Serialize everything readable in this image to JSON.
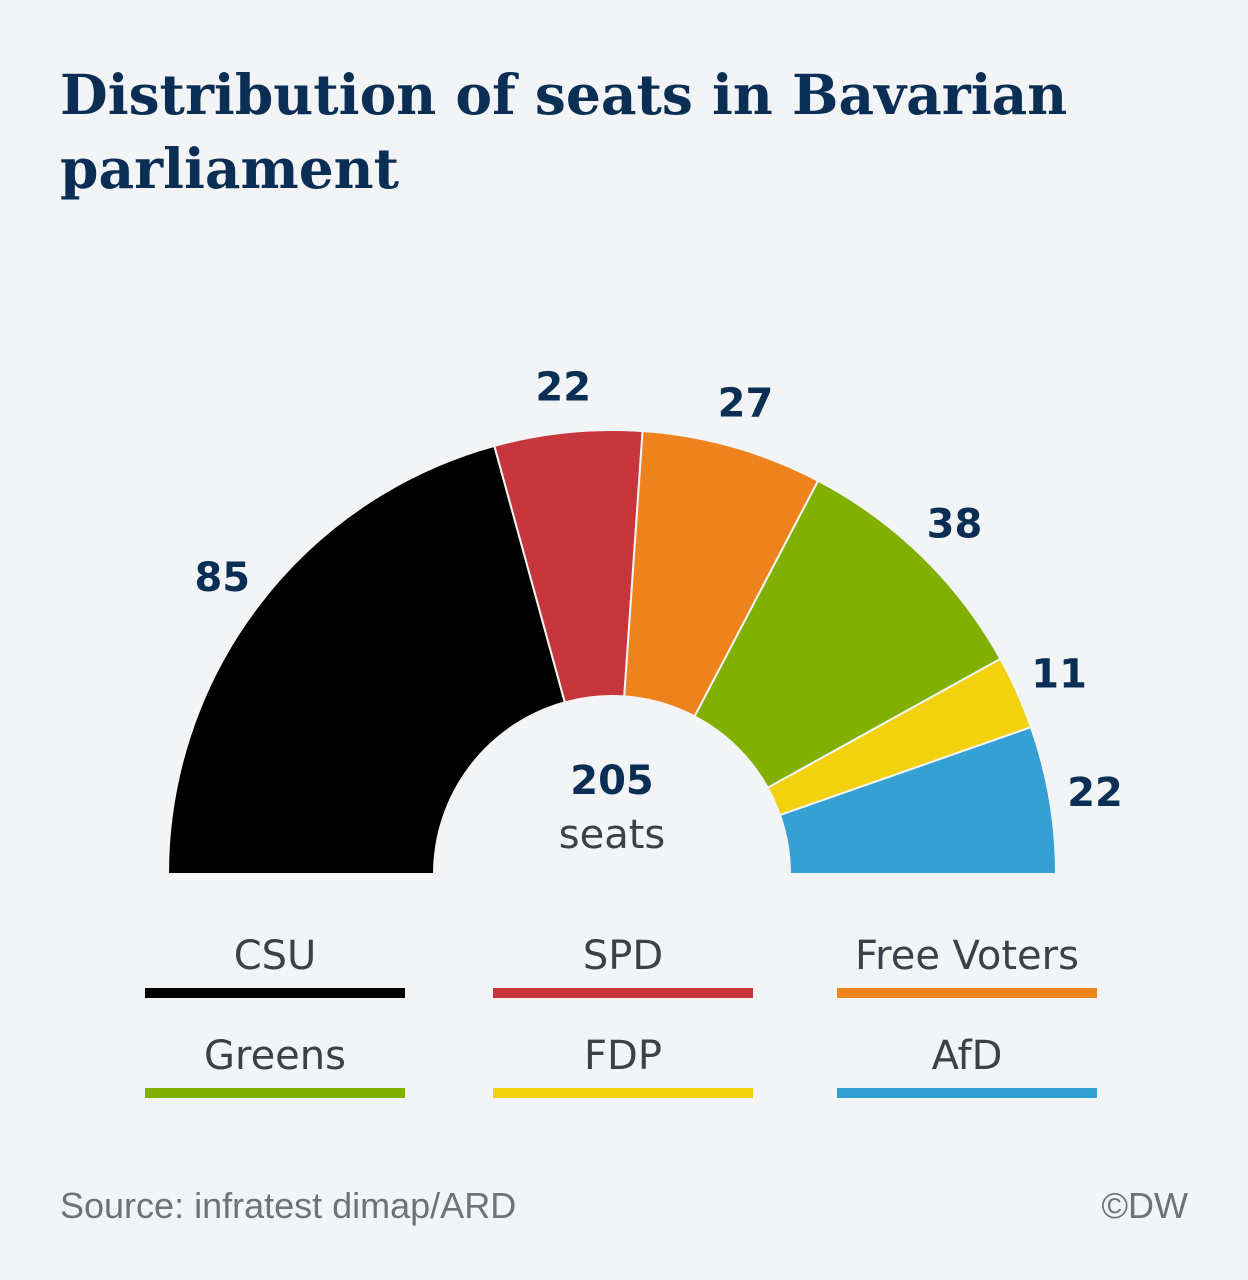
{
  "title": "Distribution of seats in Bavarian parliament",
  "chart_data": {
    "type": "pie",
    "subtype": "semicircle-parliament",
    "title": "Distribution of seats in Bavarian parliament",
    "total": 205,
    "total_label": "205",
    "total_unit": "seats",
    "series": [
      {
        "name": "CSU",
        "value": 85,
        "color": "#000000"
      },
      {
        "name": "SPD",
        "value": 22,
        "color": "#c8363d"
      },
      {
        "name": "Free Voters",
        "value": 27,
        "color": "#ee821c"
      },
      {
        "name": "Greens",
        "value": 38,
        "color": "#82b000"
      },
      {
        "name": "FDP",
        "value": 11,
        "color": "#f2d10e"
      },
      {
        "name": "AfD",
        "value": 22,
        "color": "#34a0d3"
      }
    ],
    "legend_position": "bottom"
  },
  "footer": {
    "source": "Source: infratest dimap/ARD",
    "copyright": "©DW"
  }
}
